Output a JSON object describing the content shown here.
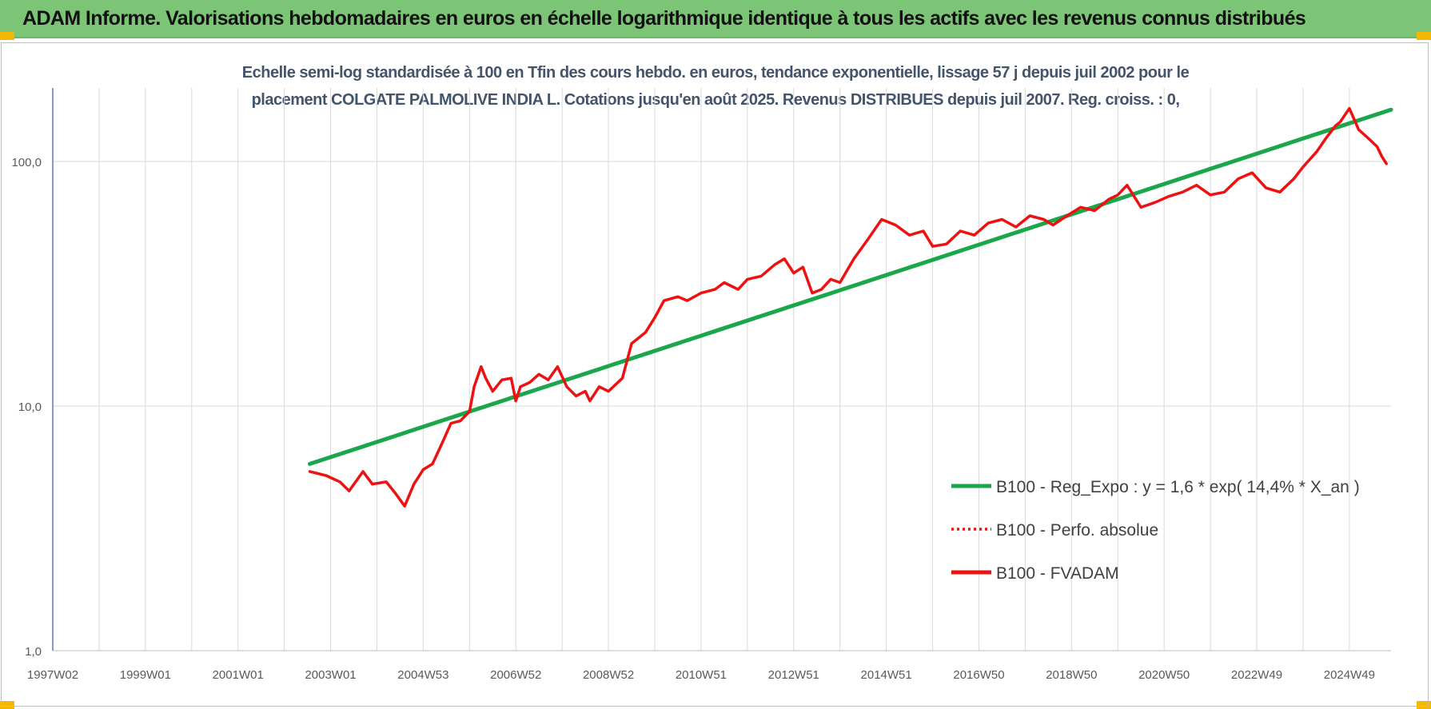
{
  "header": {
    "title": "ADAM Informe. Valorisations hebdomadaires en euros en échelle logarithmique identique à tous les actifs avec les revenus connus distribués"
  },
  "colors": {
    "header_bg": "#7cc576",
    "corner_accent": "#f5b800",
    "title_text": "#44546a",
    "trend_series": "#1aa64a",
    "fvadam_series": "#ee1111",
    "grid": "#d9d9d9",
    "y_axis": "#5b7db1"
  },
  "chart_data": {
    "type": "line",
    "title_line1": "Echelle semi-log standardisée à 100 en Tfin des cours hebdo. en euros, tendance exponentielle, lissage 57 j depuis juil 2002 pour le",
    "title_line2": "placement COLGATE PALMOLIVE INDIA L. Cotations jusqu'en août 2025. Revenus DISTRIBUES depuis juil 2007. Reg. croiss. : 0,",
    "xlabel": "",
    "ylabel": "",
    "y_scale": "log",
    "ylim": [
      1,
      200
    ],
    "xlim": [
      1997.0,
      2025.9
    ],
    "y_ticks": [
      {
        "value": 1,
        "label": "1,0"
      },
      {
        "value": 10,
        "label": "10,0"
      },
      {
        "value": 100,
        "label": "100,0"
      }
    ],
    "x_ticks": [
      {
        "value": 1997.0,
        "label": "1997W02"
      },
      {
        "value": 1999.0,
        "label": "1999W01"
      },
      {
        "value": 2001.0,
        "label": "2001W01"
      },
      {
        "value": 2003.0,
        "label": "2003W01"
      },
      {
        "value": 2005.0,
        "label": "2004W53"
      },
      {
        "value": 2007.0,
        "label": "2006W52"
      },
      {
        "value": 2009.0,
        "label": "2008W52"
      },
      {
        "value": 2011.0,
        "label": "2010W51"
      },
      {
        "value": 2013.0,
        "label": "2012W51"
      },
      {
        "value": 2015.0,
        "label": "2014W51"
      },
      {
        "value": 2017.0,
        "label": "2016W50"
      },
      {
        "value": 2019.0,
        "label": "2018W50"
      },
      {
        "value": 2021.0,
        "label": "2020W50"
      },
      {
        "value": 2023.0,
        "label": "2022W49"
      },
      {
        "value": 2025.0,
        "label": "2024W49"
      }
    ],
    "minor_gridlines_x": [
      1998,
      2000,
      2002,
      2004,
      2006,
      2008,
      2010,
      2012,
      2014,
      2016,
      2018,
      2020,
      2022,
      2024
    ],
    "grid": true,
    "legend_position": "bottom-right",
    "series": [
      {
        "name": "B100 - Reg_Expo : y = 1,6 * exp( 14,4% *  X_an )",
        "style": "solid",
        "color": "#1aa64a",
        "x": [
          2002.55,
          2025.9
        ],
        "y": [
          5.8,
          163
        ]
      },
      {
        "name": "B100 - Perfo. absolue",
        "style": "dotted",
        "color": "#ee1111",
        "x": [],
        "y": []
      },
      {
        "name": "B100 - FVADAM",
        "style": "solid",
        "color": "#ee1111",
        "x": [
          2002.55,
          2002.9,
          2003.2,
          2003.4,
          2003.7,
          2003.9,
          2004.2,
          2004.4,
          2004.6,
          2004.8,
          2005.0,
          2005.2,
          2005.4,
          2005.6,
          2005.8,
          2006.0,
          2006.1,
          2006.25,
          2006.35,
          2006.5,
          2006.7,
          2006.9,
          2007.0,
          2007.1,
          2007.3,
          2007.5,
          2007.7,
          2007.9,
          2008.1,
          2008.3,
          2008.5,
          2008.6,
          2008.8,
          2009.0,
          2009.3,
          2009.5,
          2009.8,
          2010.0,
          2010.2,
          2010.5,
          2010.7,
          2011.0,
          2011.3,
          2011.5,
          2011.8,
          2012.0,
          2012.3,
          2012.6,
          2012.8,
          2013.0,
          2013.2,
          2013.4,
          2013.6,
          2013.8,
          2014.0,
          2014.3,
          2014.6,
          2014.9,
          2015.2,
          2015.5,
          2015.8,
          2016.0,
          2016.3,
          2016.6,
          2016.9,
          2017.2,
          2017.5,
          2017.8,
          2018.1,
          2018.4,
          2018.6,
          2018.9,
          2019.2,
          2019.5,
          2019.8,
          2020.0,
          2020.2,
          2020.5,
          2020.8,
          2021.1,
          2021.4,
          2021.7,
          2022.0,
          2022.3,
          2022.6,
          2022.9,
          2023.2,
          2023.5,
          2023.8,
          2024.0,
          2024.3,
          2024.5,
          2024.7,
          2024.8,
          2025.0,
          2025.2,
          2025.4,
          2025.6,
          2025.7,
          2025.8
        ],
        "y": [
          5.4,
          5.2,
          4.9,
          4.5,
          5.4,
          4.8,
          4.9,
          4.4,
          3.9,
          4.8,
          5.5,
          5.8,
          7.0,
          8.5,
          8.7,
          9.5,
          12.0,
          14.5,
          13.0,
          11.5,
          12.8,
          13.0,
          10.5,
          12.0,
          12.5,
          13.5,
          12.8,
          14.5,
          12.0,
          11.0,
          11.5,
          10.5,
          12.0,
          11.5,
          13.0,
          18.0,
          20.0,
          23.0,
          27.0,
          28.0,
          27.0,
          29.0,
          30.0,
          32.0,
          30.0,
          33.0,
          34.0,
          38.0,
          40.0,
          35.0,
          37.0,
          29.0,
          30.0,
          33.0,
          32.0,
          40.0,
          48.0,
          58.0,
          55.0,
          50.0,
          52.0,
          45.0,
          46.0,
          52.0,
          50.0,
          56.0,
          58.0,
          54.0,
          60.0,
          58.0,
          55.0,
          60.0,
          65.0,
          63.0,
          70.0,
          73.0,
          80.0,
          65.0,
          68.0,
          72.0,
          75.0,
          80.0,
          73.0,
          75.0,
          85.0,
          90.0,
          78.0,
          75.0,
          85.0,
          95.0,
          110.0,
          125.0,
          140.0,
          145.0,
          165.0,
          135.0,
          125.0,
          115.0,
          105.0,
          98.0
        ]
      }
    ]
  }
}
